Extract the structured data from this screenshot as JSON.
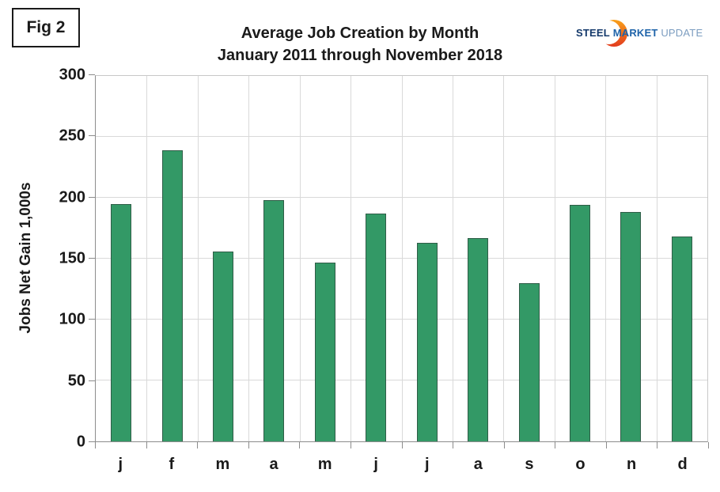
{
  "figure_label": "Fig 2",
  "title": {
    "line1": "Average Job Creation by Month",
    "line2": "January 2011 through November 2018"
  },
  "logo": {
    "steel": "STEEL",
    "market": "MARKET",
    "update": "UPDATE",
    "crescent_color_top": "#F9A11B",
    "crescent_color_bottom": "#E23B1E"
  },
  "chart_data": {
    "type": "bar",
    "title": "Average Job Creation by Month — January 2011 through November 2018",
    "categories": [
      "j",
      "f",
      "m",
      "a",
      "m",
      "j",
      "j",
      "a",
      "s",
      "o",
      "n",
      "d"
    ],
    "values": [
      195,
      239,
      156,
      198,
      147,
      187,
      163,
      167,
      130,
      194,
      188,
      168
    ],
    "xlabel": "",
    "ylabel": "Jobs Net Gain 1,000s",
    "ylim": [
      0,
      300
    ],
    "yticks": [
      0,
      50,
      100,
      150,
      200,
      250,
      300
    ],
    "grid": true,
    "legend": false,
    "bar_color": "#339966",
    "bar_border_color": "#2f5d47",
    "gridline_color": "#d9d9d9",
    "axis_color": "#8c8c8c"
  }
}
